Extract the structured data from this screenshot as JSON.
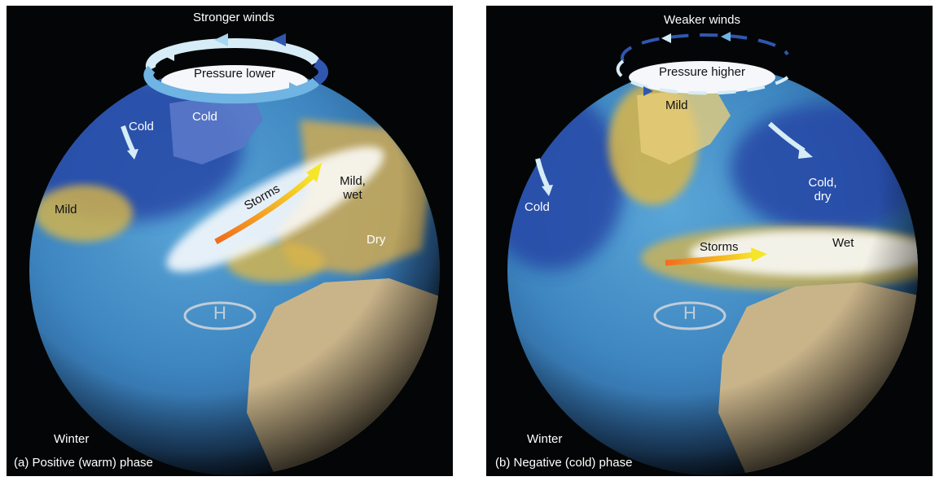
{
  "panel_a": {
    "title_winds": "Stronger winds",
    "pressure": "Pressure lower",
    "cold_1": "Cold",
    "cold_2": "Cold",
    "mild": "Mild",
    "storms": "Storms",
    "mild_wet": "Mild,\nwet",
    "dry": "Dry",
    "high": "H",
    "season": "Winter",
    "caption": "(a) Positive (warm) phase"
  },
  "panel_b": {
    "title_winds": "Weaker winds",
    "pressure": "Pressure higher",
    "mild": "Mild",
    "cold": "Cold",
    "cold_dry": "Cold,\ndry",
    "storms": "Storms",
    "wet": "Wet",
    "high": "H",
    "season": "Winter",
    "caption": "(b) Negative (cold) phase"
  },
  "colors": {
    "ocean": "#3f86c2",
    "cold_region": "#2646a6",
    "mild_region": "#d9b64a",
    "land": "#c9b48a",
    "storm_arrow_start": "#f26b1d",
    "storm_arrow_end": "#f5e62a",
    "wind_arrow_light": "#d6ecf6",
    "wind_arrow_dark": "#2f57b0"
  }
}
